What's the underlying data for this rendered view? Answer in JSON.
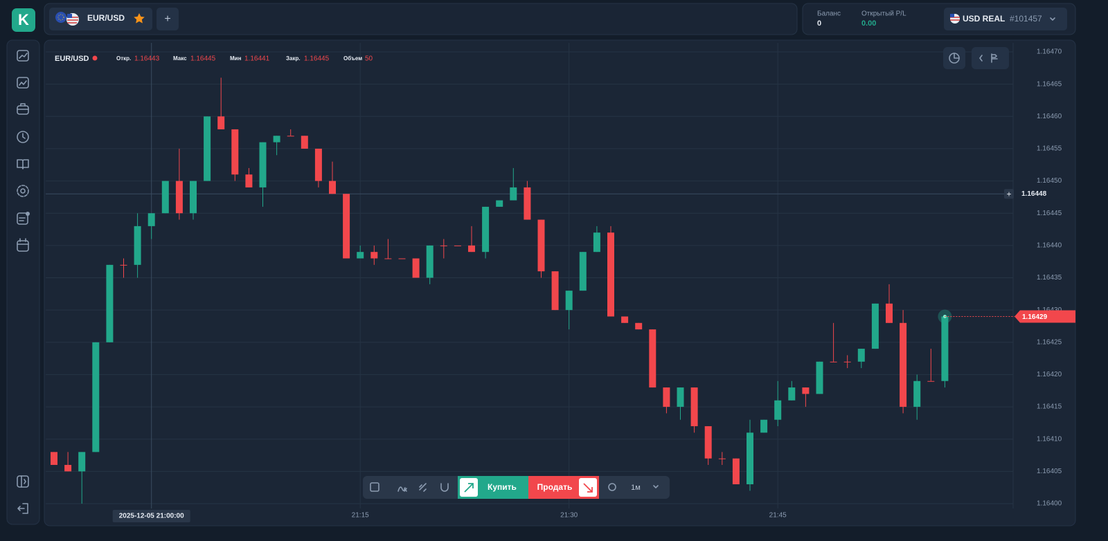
{
  "ui": {
    "logo": "K",
    "tab": {
      "symbol": "EUR/USD",
      "add": "+"
    },
    "account": {
      "balance_label": "Баланс",
      "balance": "0",
      "pl_label": "Открытый P/L",
      "pl": "0.00",
      "currency": "USD REAL",
      "account_id": "#101457"
    },
    "toolbar": {
      "buy": "Купить",
      "sell": "Продать",
      "timeframe": "1м"
    }
  },
  "chart_data": {
    "type": "candlestick",
    "ohlc_readout": {
      "symbol": "EUR/USD",
      "items": [
        {
          "label": "Откр.",
          "value": 1.16443
        },
        {
          "label": "Макс",
          "value": 1.16445
        },
        {
          "label": "Мин",
          "value": 1.16441
        },
        {
          "label": "Закр.",
          "value": 1.16445
        },
        {
          "label": "Объем",
          "value": 50
        }
      ]
    },
    "x": [
      "20:53",
      "20:54",
      "20:55",
      "20:56",
      "20:57",
      "20:58",
      "20:59",
      "21:00",
      "21:01",
      "21:02",
      "21:03",
      "21:04",
      "21:05",
      "21:06",
      "21:07",
      "21:08",
      "21:09",
      "21:10",
      "21:11",
      "21:12",
      "21:13",
      "21:14",
      "21:15",
      "21:16",
      "21:17",
      "21:18",
      "21:19",
      "21:20",
      "21:21",
      "21:22",
      "21:23",
      "21:24",
      "21:25",
      "21:26",
      "21:27",
      "21:28",
      "21:29",
      "21:30",
      "21:31",
      "21:32",
      "21:33",
      "21:34",
      "21:35",
      "21:36",
      "21:37",
      "21:38",
      "21:39",
      "21:40",
      "21:41",
      "21:42",
      "21:43",
      "21:44",
      "21:45",
      "21:46",
      "21:47",
      "21:48",
      "21:49",
      "21:50",
      "21:51",
      "21:52",
      "21:53",
      "21:54",
      "21:55",
      "21:56",
      "21:57"
    ],
    "open": [
      1.16408,
      1.16406,
      1.16405,
      1.16408,
      1.16425,
      1.16437,
      1.16437,
      1.16443,
      1.16445,
      1.1645,
      1.16445,
      1.1645,
      1.1646,
      1.16458,
      1.16451,
      1.16449,
      1.16456,
      1.16457,
      1.16457,
      1.16455,
      1.1645,
      1.16448,
      1.16438,
      1.16439,
      1.16438,
      1.16438,
      1.16438,
      1.16435,
      1.1644,
      1.1644,
      1.1644,
      1.16439,
      1.16446,
      1.16447,
      1.16449,
      1.16444,
      1.16436,
      1.1643,
      1.16433,
      1.16439,
      1.16442,
      1.16429,
      1.16428,
      1.16427,
      1.16418,
      1.16415,
      1.16418,
      1.16412,
      1.16407,
      1.16407,
      1.16403,
      1.16411,
      1.16413,
      1.16416,
      1.16418,
      1.16417,
      1.16422,
      1.16422,
      1.16422,
      1.16424,
      1.16431,
      1.16428,
      1.16415,
      1.16419,
      1.16419
    ],
    "high": [
      1.16408,
      1.16408,
      1.16408,
      1.16425,
      1.16437,
      1.16438,
      1.16445,
      1.16445,
      1.1645,
      1.16455,
      1.1645,
      1.1646,
      1.16466,
      1.16458,
      1.16452,
      1.16456,
      1.16457,
      1.16458,
      1.16457,
      1.16455,
      1.16453,
      1.16448,
      1.1644,
      1.1644,
      1.16441,
      1.16438,
      1.16438,
      1.1644,
      1.16441,
      1.1644,
      1.16443,
      1.16446,
      1.16447,
      1.16452,
      1.1645,
      1.16444,
      1.16436,
      1.16433,
      1.16439,
      1.16443,
      1.16443,
      1.16429,
      1.16428,
      1.16427,
      1.16418,
      1.16418,
      1.16418,
      1.16412,
      1.16408,
      1.16407,
      1.16413,
      1.16413,
      1.16419,
      1.16419,
      1.16418,
      1.16422,
      1.16428,
      1.16423,
      1.16424,
      1.16431,
      1.16434,
      1.1643,
      1.1642,
      1.16424,
      1.16429
    ],
    "low": [
      1.16406,
      1.16405,
      1.164,
      1.16408,
      1.16425,
      1.16435,
      1.16435,
      1.16441,
      1.16445,
      1.16444,
      1.16444,
      1.1645,
      1.16458,
      1.1645,
      1.16449,
      1.16446,
      1.16454,
      1.16457,
      1.16455,
      1.16449,
      1.16448,
      1.16438,
      1.16438,
      1.16437,
      1.16438,
      1.16438,
      1.16435,
      1.16434,
      1.16438,
      1.1644,
      1.16439,
      1.16438,
      1.16446,
      1.16447,
      1.16444,
      1.16435,
      1.1643,
      1.16427,
      1.16433,
      1.16439,
      1.16429,
      1.16428,
      1.16427,
      1.16418,
      1.16414,
      1.16413,
      1.16411,
      1.16406,
      1.16406,
      1.16403,
      1.16402,
      1.16411,
      1.16412,
      1.16416,
      1.16415,
      1.16417,
      1.16422,
      1.16421,
      1.16421,
      1.16424,
      1.16428,
      1.16414,
      1.16413,
      1.16419,
      1.16418
    ],
    "close": [
      1.16406,
      1.16405,
      1.16408,
      1.16425,
      1.16437,
      1.16437,
      1.16443,
      1.16445,
      1.1645,
      1.16445,
      1.1645,
      1.1646,
      1.16458,
      1.16451,
      1.16449,
      1.16456,
      1.16457,
      1.16457,
      1.16455,
      1.1645,
      1.16448,
      1.16438,
      1.16439,
      1.16438,
      1.16438,
      1.16438,
      1.16435,
      1.1644,
      1.1644,
      1.1644,
      1.16439,
      1.16446,
      1.16447,
      1.16449,
      1.16444,
      1.16436,
      1.1643,
      1.16433,
      1.16439,
      1.16442,
      1.16429,
      1.16428,
      1.16427,
      1.16418,
      1.16415,
      1.16418,
      1.16412,
      1.16407,
      1.16407,
      1.16403,
      1.16411,
      1.16413,
      1.16416,
      1.16418,
      1.16417,
      1.16422,
      1.16422,
      1.16422,
      1.16424,
      1.16431,
      1.16428,
      1.16415,
      1.16419,
      1.16419,
      1.16429
    ],
    "up_color": "#22a88b",
    "down_color": "#f2474c",
    "ylim": [
      1.164,
      1.1647
    ],
    "yticks": [
      {
        "value": 1.164,
        "label": "1.16400"
      },
      1.16405,
      {
        "value": 1.1641,
        "label": "1.16410"
      },
      1.16415,
      {
        "value": 1.1642,
        "label": "1.16420"
      },
      1.16425,
      {
        "value": 1.1643,
        "label": "1.16430"
      },
      1.16435,
      {
        "value": 1.1644,
        "label": "1.16440"
      },
      1.16445,
      {
        "value": 1.1645,
        "label": "1.16450"
      },
      1.16455,
      {
        "value": 1.1646,
        "label": "1.16460"
      },
      1.16465,
      {
        "value": 1.1647,
        "label": "1.16470"
      }
    ],
    "xticks": [
      "21:15",
      "21:30",
      "21:45"
    ],
    "grid": true,
    "crosshair": {
      "x_label": "2025-12-05 21:00:00",
      "y": 1.16448
    },
    "last_price": 1.16429
  }
}
